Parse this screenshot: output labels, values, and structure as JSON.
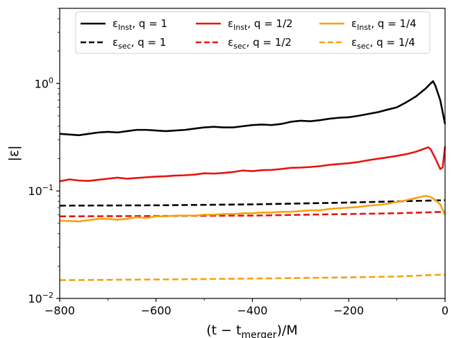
{
  "chart_data": {
    "type": "line",
    "xlabel": "(t − t_merger)/M",
    "ylabel": "|ε|",
    "xlim": [
      -800,
      0
    ],
    "ylim": [
      0.01,
      5.0
    ],
    "yscale": "log",
    "grid": false,
    "legend_position": "top",
    "x_ticks": [
      -800,
      -600,
      -400,
      -200,
      0
    ],
    "y_ticks": [
      0.01,
      0.1,
      1
    ],
    "series": [
      {
        "name": "ε_Inst, q = 1",
        "color": "#000000",
        "dash": "solid",
        "points": [
          [
            -800,
            0.34
          ],
          [
            -780,
            0.335
          ],
          [
            -760,
            0.33
          ],
          [
            -740,
            0.34
          ],
          [
            -720,
            0.35
          ],
          [
            -700,
            0.355
          ],
          [
            -680,
            0.35
          ],
          [
            -660,
            0.36
          ],
          [
            -640,
            0.37
          ],
          [
            -620,
            0.37
          ],
          [
            -600,
            0.365
          ],
          [
            -580,
            0.36
          ],
          [
            -560,
            0.365
          ],
          [
            -540,
            0.37
          ],
          [
            -520,
            0.38
          ],
          [
            -500,
            0.39
          ],
          [
            -480,
            0.395
          ],
          [
            -460,
            0.39
          ],
          [
            -440,
            0.39
          ],
          [
            -420,
            0.4
          ],
          [
            -400,
            0.41
          ],
          [
            -380,
            0.415
          ],
          [
            -360,
            0.41
          ],
          [
            -340,
            0.42
          ],
          [
            -320,
            0.44
          ],
          [
            -300,
            0.45
          ],
          [
            -280,
            0.445
          ],
          [
            -260,
            0.455
          ],
          [
            -240,
            0.47
          ],
          [
            -220,
            0.48
          ],
          [
            -200,
            0.485
          ],
          [
            -180,
            0.5
          ],
          [
            -160,
            0.52
          ],
          [
            -140,
            0.54
          ],
          [
            -120,
            0.57
          ],
          [
            -100,
            0.6
          ],
          [
            -80,
            0.67
          ],
          [
            -60,
            0.76
          ],
          [
            -40,
            0.9
          ],
          [
            -30,
            1.0
          ],
          [
            -25,
            1.05
          ],
          [
            -20,
            0.95
          ],
          [
            -10,
            0.7
          ],
          [
            0,
            0.42
          ]
        ]
      },
      {
        "name": "ε_sec, q = 1",
        "color": "#000000",
        "dash": "dashed",
        "points": [
          [
            -800,
            0.073
          ],
          [
            -600,
            0.0735
          ],
          [
            -400,
            0.075
          ],
          [
            -200,
            0.078
          ],
          [
            -100,
            0.08
          ],
          [
            0,
            0.082
          ]
        ]
      },
      {
        "name": "ε_Inst, q = 1/2",
        "color": "#e8120e",
        "dash": "solid",
        "points": [
          [
            -800,
            0.123
          ],
          [
            -780,
            0.128
          ],
          [
            -760,
            0.125
          ],
          [
            -740,
            0.124
          ],
          [
            -720,
            0.127
          ],
          [
            -700,
            0.13
          ],
          [
            -680,
            0.133
          ],
          [
            -660,
            0.13
          ],
          [
            -640,
            0.132
          ],
          [
            -620,
            0.134
          ],
          [
            -600,
            0.136
          ],
          [
            -580,
            0.137
          ],
          [
            -560,
            0.139
          ],
          [
            -540,
            0.14
          ],
          [
            -520,
            0.142
          ],
          [
            -500,
            0.146
          ],
          [
            -480,
            0.145
          ],
          [
            -460,
            0.147
          ],
          [
            -440,
            0.15
          ],
          [
            -420,
            0.155
          ],
          [
            -400,
            0.153
          ],
          [
            -380,
            0.156
          ],
          [
            -360,
            0.157
          ],
          [
            -340,
            0.16
          ],
          [
            -320,
            0.164
          ],
          [
            -300,
            0.165
          ],
          [
            -280,
            0.167
          ],
          [
            -260,
            0.17
          ],
          [
            -240,
            0.175
          ],
          [
            -220,
            0.178
          ],
          [
            -200,
            0.181
          ],
          [
            -180,
            0.186
          ],
          [
            -160,
            0.193
          ],
          [
            -140,
            0.199
          ],
          [
            -120,
            0.205
          ],
          [
            -100,
            0.212
          ],
          [
            -80,
            0.22
          ],
          [
            -60,
            0.232
          ],
          [
            -40,
            0.25
          ],
          [
            -35,
            0.255
          ],
          [
            -30,
            0.245
          ],
          [
            -20,
            0.2
          ],
          [
            -10,
            0.16
          ],
          [
            -5,
            0.165
          ],
          [
            0,
            0.26
          ]
        ]
      },
      {
        "name": "ε_sec, q = 1/2",
        "color": "#e8120e",
        "dash": "dashed",
        "points": [
          [
            -800,
            0.058
          ],
          [
            -600,
            0.0585
          ],
          [
            -400,
            0.059
          ],
          [
            -200,
            0.061
          ],
          [
            -100,
            0.062
          ],
          [
            0,
            0.064
          ]
        ]
      },
      {
        "name": "ε_Inst, q = 1/4",
        "color": "#f5a20c",
        "dash": "solid",
        "points": [
          [
            -800,
            0.053
          ],
          [
            -760,
            0.052
          ],
          [
            -720,
            0.055
          ],
          [
            -700,
            0.055
          ],
          [
            -680,
            0.054
          ],
          [
            -660,
            0.055
          ],
          [
            -640,
            0.057
          ],
          [
            -620,
            0.056
          ],
          [
            -600,
            0.058
          ],
          [
            -580,
            0.058
          ],
          [
            -560,
            0.059
          ],
          [
            -540,
            0.059
          ],
          [
            -520,
            0.059
          ],
          [
            -500,
            0.06
          ],
          [
            -480,
            0.06
          ],
          [
            -460,
            0.061
          ],
          [
            -440,
            0.061
          ],
          [
            -420,
            0.062
          ],
          [
            -400,
            0.062
          ],
          [
            -380,
            0.063
          ],
          [
            -360,
            0.063
          ],
          [
            -340,
            0.064
          ],
          [
            -320,
            0.064
          ],
          [
            -300,
            0.065
          ],
          [
            -280,
            0.066
          ],
          [
            -260,
            0.066
          ],
          [
            -240,
            0.068
          ],
          [
            -220,
            0.069
          ],
          [
            -200,
            0.07
          ],
          [
            -180,
            0.071
          ],
          [
            -160,
            0.073
          ],
          [
            -140,
            0.074
          ],
          [
            -120,
            0.076
          ],
          [
            -100,
            0.079
          ],
          [
            -80,
            0.082
          ],
          [
            -60,
            0.086
          ],
          [
            -40,
            0.09
          ],
          [
            -30,
            0.088
          ],
          [
            -20,
            0.082
          ],
          [
            -10,
            0.075
          ],
          [
            0,
            0.06
          ]
        ]
      },
      {
        "name": "ε_sec, q = 1/4",
        "color": "#f5a20c",
        "dash": "dashed",
        "points": [
          [
            -800,
            0.0148
          ],
          [
            -600,
            0.015
          ],
          [
            -400,
            0.0153
          ],
          [
            -200,
            0.0157
          ],
          [
            -100,
            0.016
          ],
          [
            0,
            0.0167
          ]
        ]
      }
    ]
  },
  "legend": {
    "items": [
      {
        "sym": "ε",
        "sub": "Inst",
        "q": "1",
        "color": "#000000",
        "dash": "solid"
      },
      {
        "sym": "ε",
        "sub": "sec",
        "q": "1",
        "color": "#000000",
        "dash": "dashed"
      },
      {
        "sym": "ε",
        "sub": "Inst",
        "q": "1/2",
        "color": "#e8120e",
        "dash": "solid"
      },
      {
        "sym": "ε",
        "sub": "sec",
        "q": "1/2",
        "color": "#e8120e",
        "dash": "dashed"
      },
      {
        "sym": "ε",
        "sub": "Inst",
        "q": "1/4",
        "color": "#f5a20c",
        "dash": "solid"
      },
      {
        "sym": "ε",
        "sub": "sec",
        "q": "1/4",
        "color": "#f5a20c",
        "dash": "dashed"
      }
    ]
  },
  "axes": {
    "x_tick_labels": [
      "−800",
      "−600",
      "−400",
      "−200",
      "0"
    ],
    "y_tick_labels": [
      {
        "base": "10",
        "exp": "−2"
      },
      {
        "base": "10",
        "exp": "−1"
      },
      {
        "base": "10",
        "exp": "0"
      }
    ],
    "xlabel": {
      "open": "(t − t",
      "sub": "merger",
      "close": ")/M"
    },
    "ylabel": "|ε|"
  }
}
